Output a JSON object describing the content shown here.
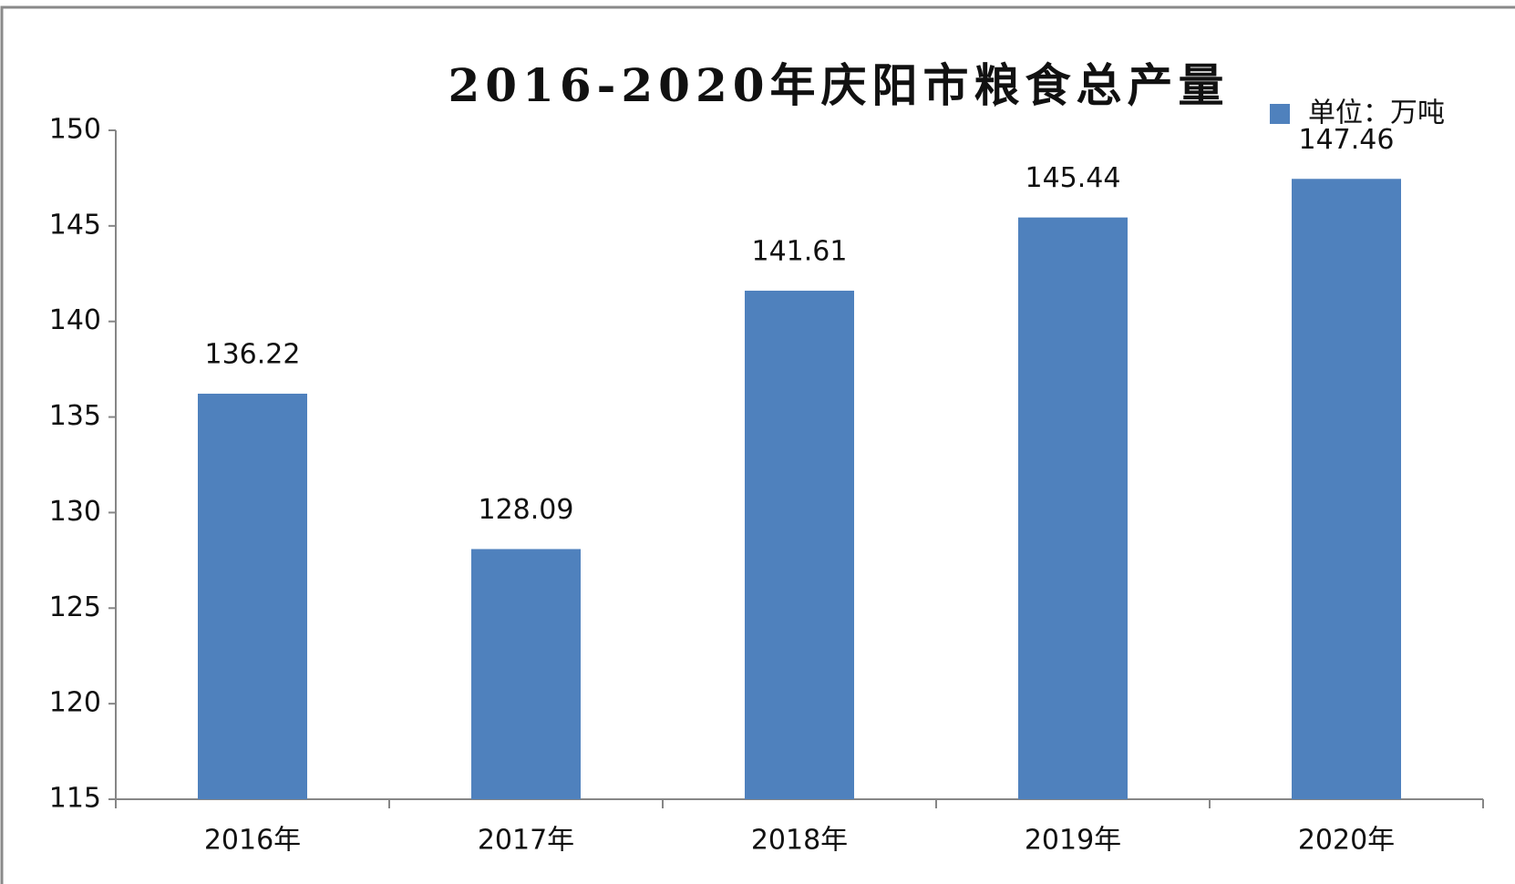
{
  "chart_data": {
    "type": "bar",
    "title": "2016-2020年庆阳市粮食总产量",
    "categories": [
      "2016年",
      "2017年",
      "2018年",
      "2019年",
      "2020年"
    ],
    "series": [
      {
        "name": "单位：万吨",
        "color": "#4f81bd",
        "values": [
          136.22,
          128.09,
          141.61,
          145.44,
          147.46
        ]
      }
    ],
    "ylim": [
      115,
      150
    ],
    "yticks": [
      115,
      120,
      125,
      130,
      135,
      140,
      145,
      150
    ],
    "grid": false,
    "legend": "top-right"
  }
}
